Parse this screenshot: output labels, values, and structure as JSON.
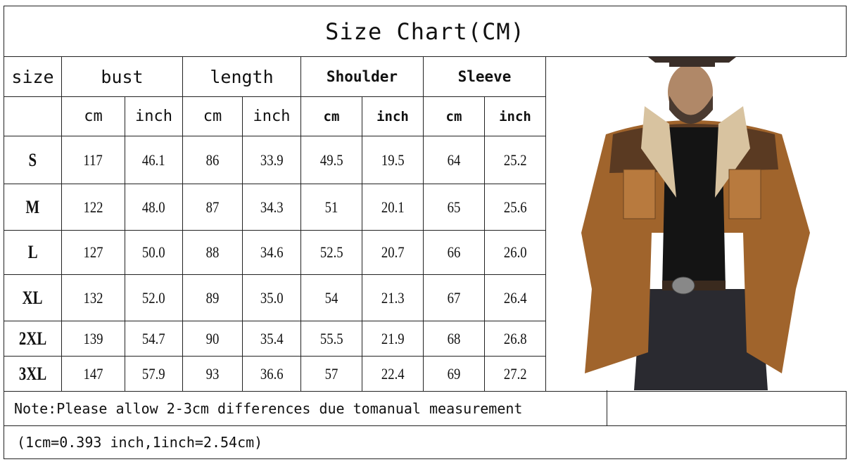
{
  "title": "Size Chart(CM)",
  "headers": {
    "size": "size",
    "bust": "bust",
    "length": "length",
    "shoulder": "Shoulder",
    "sleeve": "Sleeve"
  },
  "units": [
    "cm",
    "inch",
    "cm",
    "inch",
    "cm",
    "inch",
    "cm",
    "inch"
  ],
  "rows": [
    {
      "size": "S",
      "values": [
        "117",
        "46.1",
        "86",
        "33.9",
        "49.5",
        "19.5",
        "64",
        "25.2"
      ]
    },
    {
      "size": "M",
      "values": [
        "122",
        "48.0",
        "87",
        "34.3",
        "51",
        "20.1",
        "65",
        "25.6"
      ]
    },
    {
      "size": "L",
      "values": [
        "127",
        "50.0",
        "88",
        "34.6",
        "52.5",
        "20.7",
        "66",
        "26.0"
      ]
    },
    {
      "size": "XL",
      "values": [
        "132",
        "52.0",
        "89",
        "35.0",
        "54",
        "21.3",
        "67",
        "26.4"
      ]
    },
    {
      "size": "2XL",
      "values": [
        "139",
        "54.7",
        "90",
        "35.4",
        "55.5",
        "21.9",
        "68",
        "26.8"
      ]
    },
    {
      "size": "3XL",
      "values": [
        "147",
        "57.9",
        "93",
        "36.6",
        "57",
        "22.4",
        "69",
        "27.2"
      ]
    }
  ],
  "note": "Note:Please allow 2-3cm differences due tomanual measurement",
  "conversion": "(1cm=0.393 inch,1inch=2.54cm)",
  "colors": {
    "jacket": "#a0642c",
    "yoke": "#5a3a22",
    "collar": "#d8c3a0",
    "shirt": "#141414",
    "jeans": "#2a2a30"
  }
}
